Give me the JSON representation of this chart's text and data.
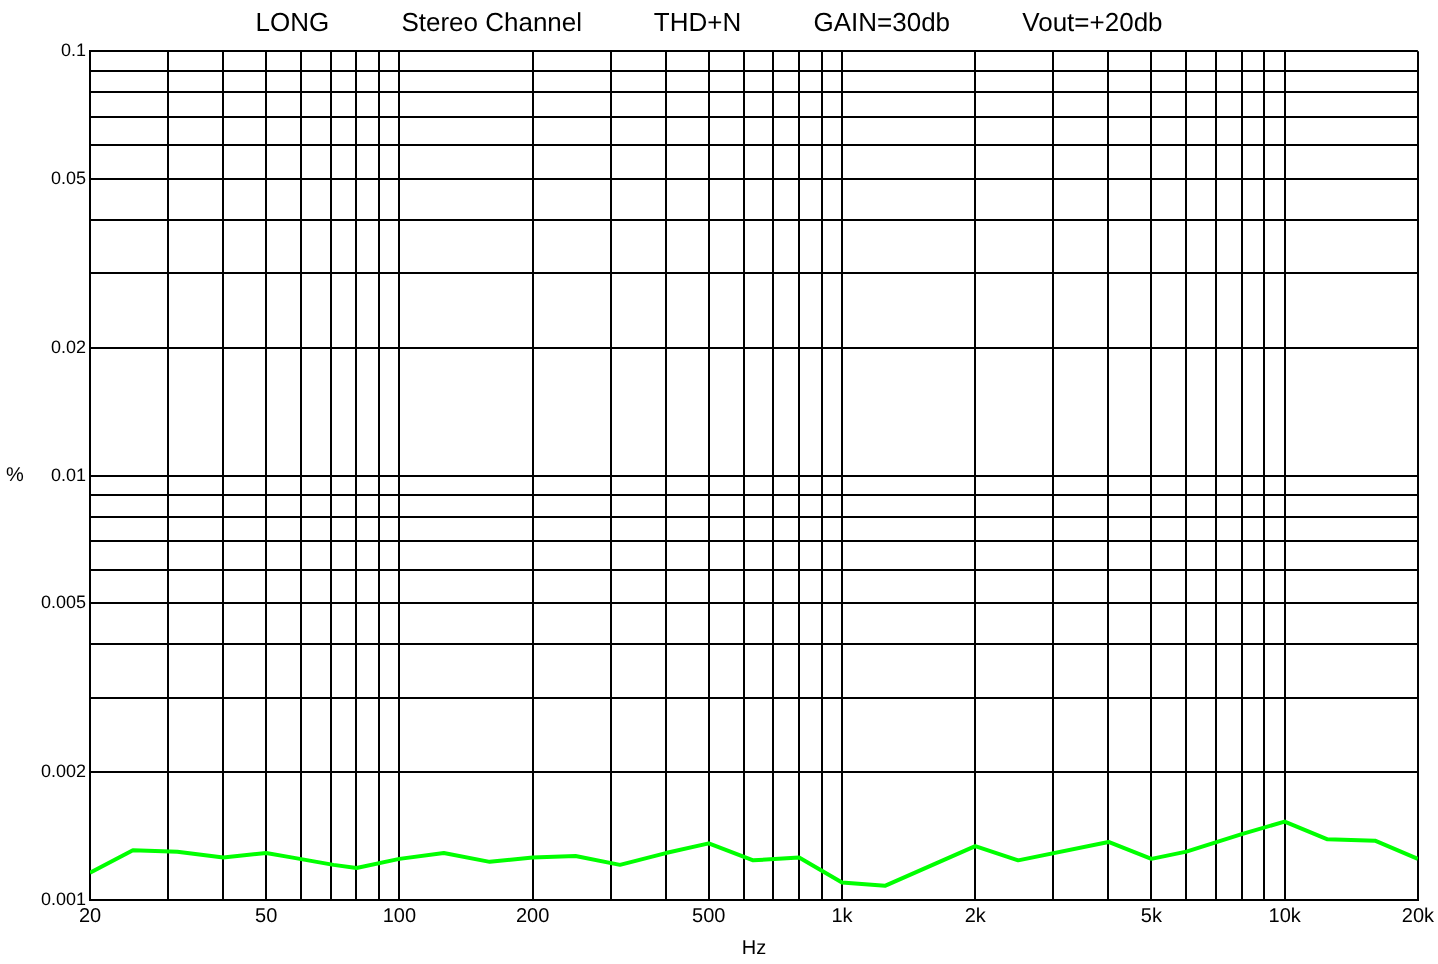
{
  "chart_data": {
    "type": "line",
    "title": "LONG          Stereo Channel          THD+N          GAIN=30db          Vout=+20db",
    "xlabel": "Hz",
    "ylabel": "%",
    "log": "xy",
    "grid": true,
    "legend": false,
    "marker": "none",
    "line_style": "solid",
    "xlim": [
      20,
      20000
    ],
    "ylim": [
      0.001,
      0.1
    ],
    "xticks": [
      20,
      {
        "value": 30,
        "label": null
      },
      {
        "value": 40,
        "label": null
      },
      50,
      {
        "value": 60,
        "label": null
      },
      {
        "value": 70,
        "label": null
      },
      {
        "value": 80,
        "label": null
      },
      {
        "value": 90,
        "label": null
      },
      100,
      200,
      {
        "value": 300,
        "label": null
      },
      {
        "value": 400,
        "label": null
      },
      500,
      {
        "value": 600,
        "label": null
      },
      {
        "value": 700,
        "label": null
      },
      {
        "value": 800,
        "label": null
      },
      {
        "value": 900,
        "label": null
      },
      {
        "value": 1000,
        "label": "1k"
      },
      {
        "value": 2000,
        "label": "2k"
      },
      {
        "value": 3000,
        "label": null
      },
      {
        "value": 4000,
        "label": null
      },
      {
        "value": 5000,
        "label": "5k"
      },
      {
        "value": 6000,
        "label": null
      },
      {
        "value": 7000,
        "label": null
      },
      {
        "value": 8000,
        "label": null
      },
      {
        "value": 9000,
        "label": null
      },
      {
        "value": 10000,
        "label": "10k"
      },
      {
        "value": 20000,
        "label": "20k"
      }
    ],
    "yticks": [
      0.001,
      0.002,
      {
        "value": 0.003,
        "label": null
      },
      {
        "value": 0.004,
        "label": null
      },
      0.005,
      {
        "value": 0.006,
        "label": null
      },
      {
        "value": 0.007,
        "label": null
      },
      {
        "value": 0.008,
        "label": null
      },
      {
        "value": 0.009,
        "label": null
      },
      0.01,
      0.02,
      {
        "value": 0.03,
        "label": null
      },
      {
        "value": 0.04,
        "label": null
      },
      0.05,
      {
        "value": 0.06,
        "label": null
      },
      {
        "value": 0.07,
        "label": null
      },
      {
        "value": 0.08,
        "label": null
      },
      {
        "value": 0.09,
        "label": null
      },
      0.1
    ],
    "series": [
      {
        "color": "#00ff00",
        "x": [
          20,
          25,
          31.5,
          40,
          50,
          57,
          71,
          80,
          100,
          126,
          160,
          200,
          250,
          315,
          400,
          500,
          630,
          800,
          1000,
          1250,
          2000,
          2500,
          4000,
          5000,
          6000,
          8000,
          10000,
          12500,
          16000,
          20000
        ],
        "values": [
          0.00116,
          0.00131,
          0.0013,
          0.00126,
          0.00129,
          0.00126,
          0.00121,
          0.00119,
          0.00125,
          0.00129,
          0.00123,
          0.00126,
          0.00127,
          0.00121,
          0.00129,
          0.00136,
          0.00124,
          0.00126,
          0.0011,
          0.00108,
          0.00134,
          0.00124,
          0.00137,
          0.00125,
          0.0013,
          0.00143,
          0.00153,
          0.00139,
          0.00138,
          0.00125
        ]
      }
    ]
  }
}
